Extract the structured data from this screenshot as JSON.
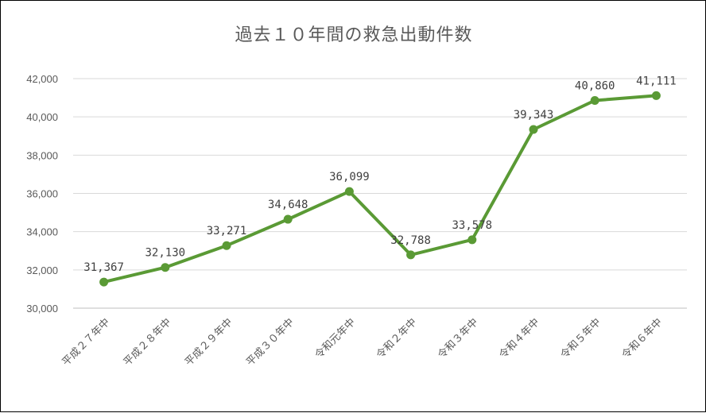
{
  "chart_data": {
    "type": "line",
    "title": "過去１０年間の救急出動件数",
    "categories": [
      "平成２７年中",
      "平成２８年中",
      "平成２９年中",
      "平成３０年中",
      "令和元年中",
      "令和２年中",
      "令和３年中",
      "令和４年中",
      "令和５年中",
      "令和６年中"
    ],
    "values": [
      31367,
      32130,
      33271,
      34648,
      36099,
      32788,
      33578,
      39343,
      40860,
      41111
    ],
    "data_labels": [
      "31,367",
      "32,130",
      "33,271",
      "34,648",
      "36,099",
      "32,788",
      "33,578",
      "39,343",
      "40,860",
      "41,111"
    ],
    "y_ticks": [
      "30,000",
      "32,000",
      "34,000",
      "36,000",
      "38,000",
      "40,000",
      "42,000"
    ],
    "ylim": [
      30000,
      42000
    ],
    "grid": true,
    "legend": "none",
    "line_color": "#5a9a35"
  }
}
